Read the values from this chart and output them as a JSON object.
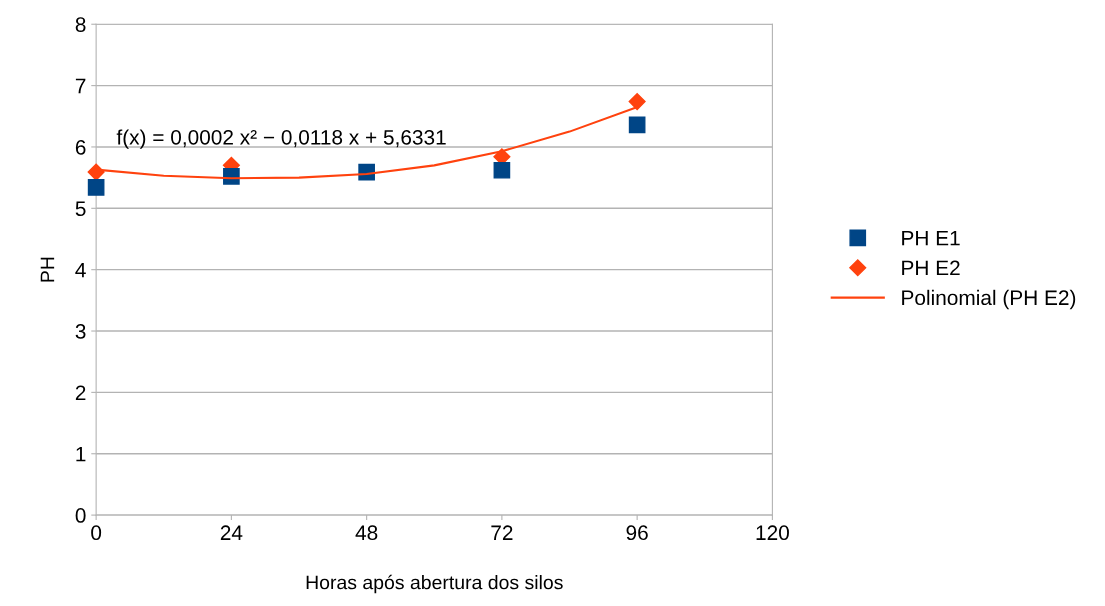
{
  "chart_data": {
    "type": "scatter",
    "xlabel": "Horas após abertura dos silos",
    "ylabel": "PH",
    "xlim": [
      0,
      120
    ],
    "xticks": [
      0,
      24,
      48,
      72,
      96,
      120
    ],
    "ylim": [
      0,
      8
    ],
    "yticks": [
      0,
      1,
      2,
      3,
      4,
      5,
      6,
      7,
      8
    ],
    "grid": "y",
    "legend": "right",
    "annotations": [
      "f(x) = 0,0002 x² − 0,0118 x + 5,6331"
    ],
    "series": [
      {
        "name": "PH E1",
        "marker": "square",
        "color": "#004586",
        "x": [
          0,
          24,
          48,
          72,
          96
        ],
        "values": [
          5.34,
          5.52,
          5.59,
          5.62,
          6.36
        ]
      },
      {
        "name": "PH E2",
        "marker": "diamond",
        "color": "#ff420e",
        "x": [
          0,
          24,
          48,
          72,
          96
        ],
        "values": [
          5.59,
          5.7,
          null,
          5.84,
          6.74
        ]
      },
      {
        "name": "Polinomial (PH E2)",
        "type": "line",
        "marker": "none",
        "color": "#ff420e",
        "x": [
          0,
          12,
          24,
          36,
          48,
          60,
          72,
          84,
          96
        ],
        "values": [
          5.63,
          5.53,
          5.49,
          5.5,
          5.56,
          5.7,
          5.93,
          6.25,
          6.65
        ]
      }
    ]
  }
}
